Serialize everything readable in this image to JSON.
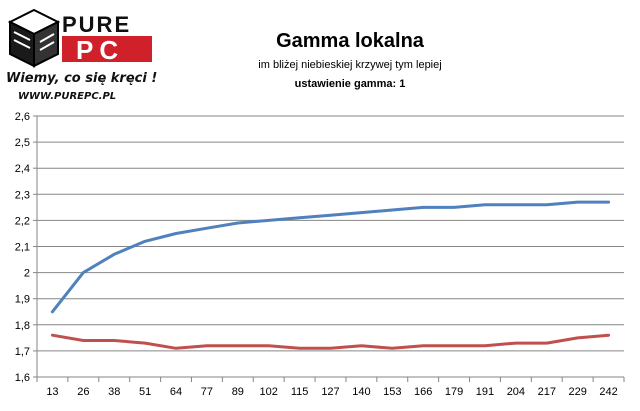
{
  "logo": {
    "brand_top": "PURE",
    "brand_bottom": "PC",
    "slogan": "Wiemy, co się kręci !",
    "url": "WWW.PUREPC.PL"
  },
  "chart_data": {
    "type": "line",
    "title": "Gamma lokalna",
    "subtitle": "im bliżej niebieskiej krzywej tym lepiej",
    "subtitle2": "ustawienie gamma: 1",
    "categories": [
      "13",
      "26",
      "38",
      "51",
      "64",
      "77",
      "89",
      "102",
      "115",
      "127",
      "140",
      "153",
      "166",
      "179",
      "191",
      "204",
      "217",
      "229",
      "242"
    ],
    "yticks": [
      "1,6",
      "1,7",
      "1,8",
      "1,9",
      "2",
      "2,1",
      "2,2",
      "2,3",
      "2,4",
      "2,5",
      "2,6"
    ],
    "ylim": [
      1.6,
      2.6
    ],
    "grid": true,
    "series": [
      {
        "color": "#4f81bd",
        "values": [
          1.85,
          2.0,
          2.07,
          2.12,
          2.15,
          2.17,
          2.19,
          2.2,
          2.21,
          2.22,
          2.23,
          2.24,
          2.25,
          2.25,
          2.26,
          2.26,
          2.26,
          2.27,
          2.27
        ]
      },
      {
        "color": "#c0504d",
        "values": [
          1.76,
          1.74,
          1.74,
          1.73,
          1.71,
          1.72,
          1.72,
          1.72,
          1.71,
          1.71,
          1.72,
          1.71,
          1.72,
          1.72,
          1.72,
          1.73,
          1.73,
          1.75,
          1.76
        ]
      }
    ]
  }
}
